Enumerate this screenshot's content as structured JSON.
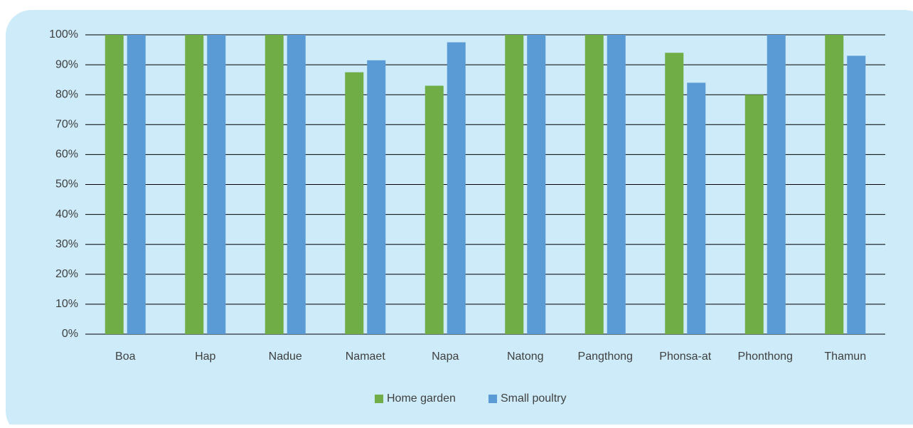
{
  "chart_data": {
    "type": "bar",
    "categories": [
      "Boa",
      "Hap",
      "Nadue",
      "Namaet",
      "Napa",
      "Natong",
      "Pangthong",
      "Phonsa-at",
      "Phonthong",
      "Thamun"
    ],
    "series": [
      {
        "name": "Home garden",
        "color": "#70ad47",
        "values": [
          100,
          100,
          100,
          87.5,
          83,
          100,
          100,
          94,
          80,
          100
        ]
      },
      {
        "name": "Small poultry",
        "color": "#5b9bd5",
        "values": [
          100,
          100,
          100,
          91.5,
          97.5,
          100,
          100,
          84,
          100,
          93
        ]
      }
    ],
    "ylim": [
      0,
      100
    ],
    "yticks": [
      {
        "value": 0,
        "label": "0%"
      },
      {
        "value": 10,
        "label": "10%"
      },
      {
        "value": 20,
        "label": "20%"
      },
      {
        "value": 30,
        "label": "30%"
      },
      {
        "value": 40,
        "label": "40%"
      },
      {
        "value": 50,
        "label": "50%"
      },
      {
        "value": 60,
        "label": "60%"
      },
      {
        "value": 70,
        "label": "70%"
      },
      {
        "value": 80,
        "label": "80%"
      },
      {
        "value": 90,
        "label": "90%"
      },
      {
        "value": 100,
        "label": "100%"
      }
    ],
    "grid": true,
    "legend": "bottom"
  }
}
